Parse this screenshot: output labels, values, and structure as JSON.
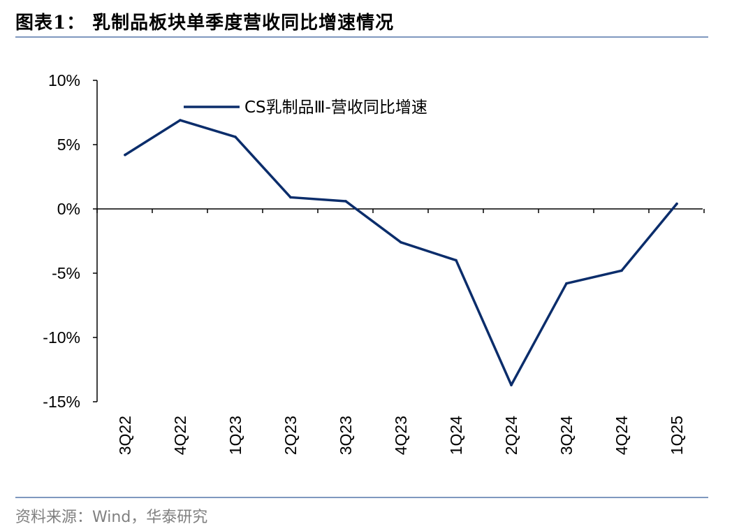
{
  "title": "图表1： 乳制品板块单季度营收同比增速情况",
  "source": "资料来源：Wind，华泰研究",
  "colors": {
    "series": "#0b2d6b",
    "axis": "#000000",
    "rule": "#7f98bf"
  },
  "chart_data": {
    "type": "line",
    "title": "",
    "xlabel": "",
    "ylabel": "",
    "x": [
      "3Q22",
      "4Q22",
      "1Q23",
      "2Q23",
      "3Q23",
      "4Q23",
      "1Q24",
      "2Q24",
      "3Q24",
      "4Q24",
      "1Q25"
    ],
    "series": [
      {
        "name": "CS乳制品Ⅲ-营收同比增速",
        "values": [
          4.2,
          6.9,
          5.6,
          0.9,
          0.6,
          -2.6,
          -4.0,
          -13.7,
          -5.8,
          -4.8,
          0.4
        ]
      }
    ],
    "ylim": [
      -15,
      10
    ],
    "yticks": [
      10,
      5,
      0,
      -5,
      -10,
      -15
    ],
    "ytick_labels": [
      "10%",
      "5%",
      "0%",
      "-5%",
      "-10%",
      "-15%"
    ],
    "grid": false,
    "legend_position": "top-left"
  }
}
